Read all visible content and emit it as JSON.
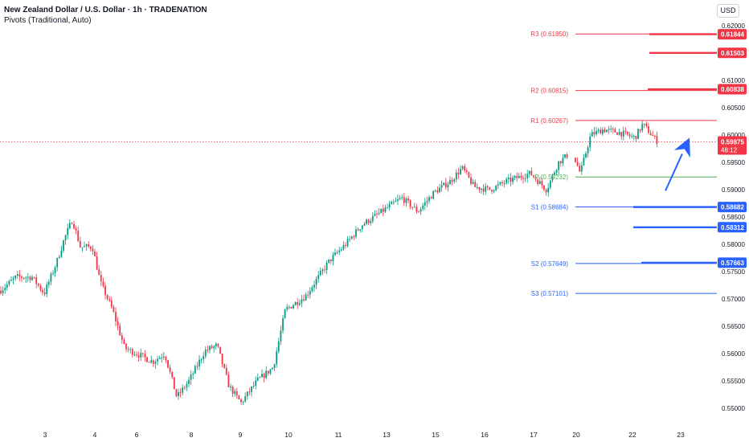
{
  "header": {
    "title": "New Zealand Dollar / U.S. Dollar · 1h · TRADENATION",
    "indicator": "Pivots (Traditional, Auto)",
    "currency": "USD"
  },
  "colors": {
    "up": "#089981",
    "down": "#f23645",
    "resistance": "#f23645",
    "support": "#2962ff",
    "pivot": "#4caf50",
    "grid_text": "#131722",
    "price_tag": "#f23645"
  },
  "chart_data": {
    "type": "candlestick",
    "title": "New Zealand Dollar / U.S. Dollar · 1h · TRADENATION",
    "ylim": [
      0.548,
      0.6215
    ],
    "y_ticks": [
      0.62,
      0.615,
      0.61,
      0.605,
      0.6,
      0.595,
      0.59,
      0.585,
      0.58,
      0.575,
      0.57,
      0.565,
      0.56,
      0.555,
      0.55
    ],
    "x_labels": [
      "3",
      "4",
      "6",
      "8",
      "9",
      "10",
      "11",
      "13",
      "15",
      "16",
      "17",
      "20",
      "22",
      "23"
    ],
    "price_path": [
      [
        0,
        0.5715
      ],
      [
        20,
        0.574
      ],
      [
        40,
        0.574
      ],
      [
        55,
        0.571
      ],
      [
        70,
        0.5765
      ],
      [
        80,
        0.581
      ],
      [
        90,
        0.5845
      ],
      [
        100,
        0.5795
      ],
      [
        115,
        0.5795
      ],
      [
        125,
        0.573
      ],
      [
        140,
        0.568
      ],
      [
        155,
        0.561
      ],
      [
        170,
        0.56
      ],
      [
        190,
        0.5585
      ],
      [
        205,
        0.56
      ],
      [
        220,
        0.552
      ],
      [
        235,
        0.555
      ],
      [
        255,
        0.5605
      ],
      [
        270,
        0.5615
      ],
      [
        285,
        0.554
      ],
      [
        300,
        0.551
      ],
      [
        320,
        0.555
      ],
      [
        340,
        0.5575
      ],
      [
        355,
        0.568
      ],
      [
        380,
        0.5705
      ],
      [
        410,
        0.577
      ],
      [
        430,
        0.58
      ],
      [
        450,
        0.5835
      ],
      [
        480,
        0.5865
      ],
      [
        500,
        0.5885
      ],
      [
        520,
        0.586
      ],
      [
        540,
        0.5895
      ],
      [
        560,
        0.5915
      ],
      [
        575,
        0.594
      ],
      [
        590,
        0.5905
      ],
      [
        610,
        0.59
      ],
      [
        630,
        0.5915
      ],
      [
        660,
        0.593
      ],
      [
        680,
        0.59
      ],
      [
        695,
        0.595
      ],
      [
        712,
        0.597
      ],
      [
        722,
        0.593
      ],
      [
        735,
        0.6
      ],
      [
        750,
        0.601
      ],
      [
        770,
        0.6005
      ],
      [
        790,
        0.5995
      ],
      [
        800,
        0.602
      ],
      [
        808,
        0.6005
      ],
      [
        818,
        0.5988
      ]
    ],
    "arrow": {
      "from": [
        0.5898,
        828
      ],
      "to": [
        0.5995,
        858
      ]
    },
    "pivot_levels": [
      {
        "label": "R3 (0.61850)",
        "value": 0.6185,
        "group": "resistance"
      },
      {
        "label": "R2 (0.60815)",
        "value": 0.60815,
        "group": "resistance"
      },
      {
        "label": "R1 (0.60267)",
        "value": 0.60267,
        "group": "resistance"
      },
      {
        "label": "P (0.59232)",
        "value": 0.59232,
        "group": "pivot"
      },
      {
        "label": "S1 (0.58684)",
        "value": 0.58684,
        "group": "support"
      },
      {
        "label": "S2 (0.57649)",
        "value": 0.57649,
        "group": "support"
      },
      {
        "label": "S3 (0.57101)",
        "value": 0.57101,
        "group": "support"
      }
    ],
    "right_tags": [
      {
        "text": "0.61844",
        "value": 0.61844,
        "group": "resistance"
      },
      {
        "text": "0.61503",
        "value": 0.61503,
        "group": "resistance"
      },
      {
        "text": "0.60838",
        "value": 0.60838,
        "group": "resistance"
      },
      {
        "text": "0.58682",
        "value": 0.58682,
        "group": "support"
      },
      {
        "text": "0.58312",
        "value": 0.58312,
        "group": "support"
      },
      {
        "text": "0.57663",
        "value": 0.57663,
        "group": "support"
      }
    ],
    "horizontal_rays": [
      {
        "value": 0.61844,
        "start": 808,
        "group": "resistance"
      },
      {
        "value": 0.61503,
        "start": 808,
        "group": "resistance"
      },
      {
        "value": 0.60838,
        "start": 806,
        "group": "resistance"
      },
      {
        "value": 0.58682,
        "start": 788,
        "group": "support"
      },
      {
        "value": 0.58312,
        "start": 788,
        "group": "support"
      },
      {
        "value": 0.57663,
        "start": 798,
        "group": "support"
      }
    ],
    "current_price": {
      "value": 0.59875,
      "text": "0.59875",
      "countdown": "48:12"
    }
  }
}
